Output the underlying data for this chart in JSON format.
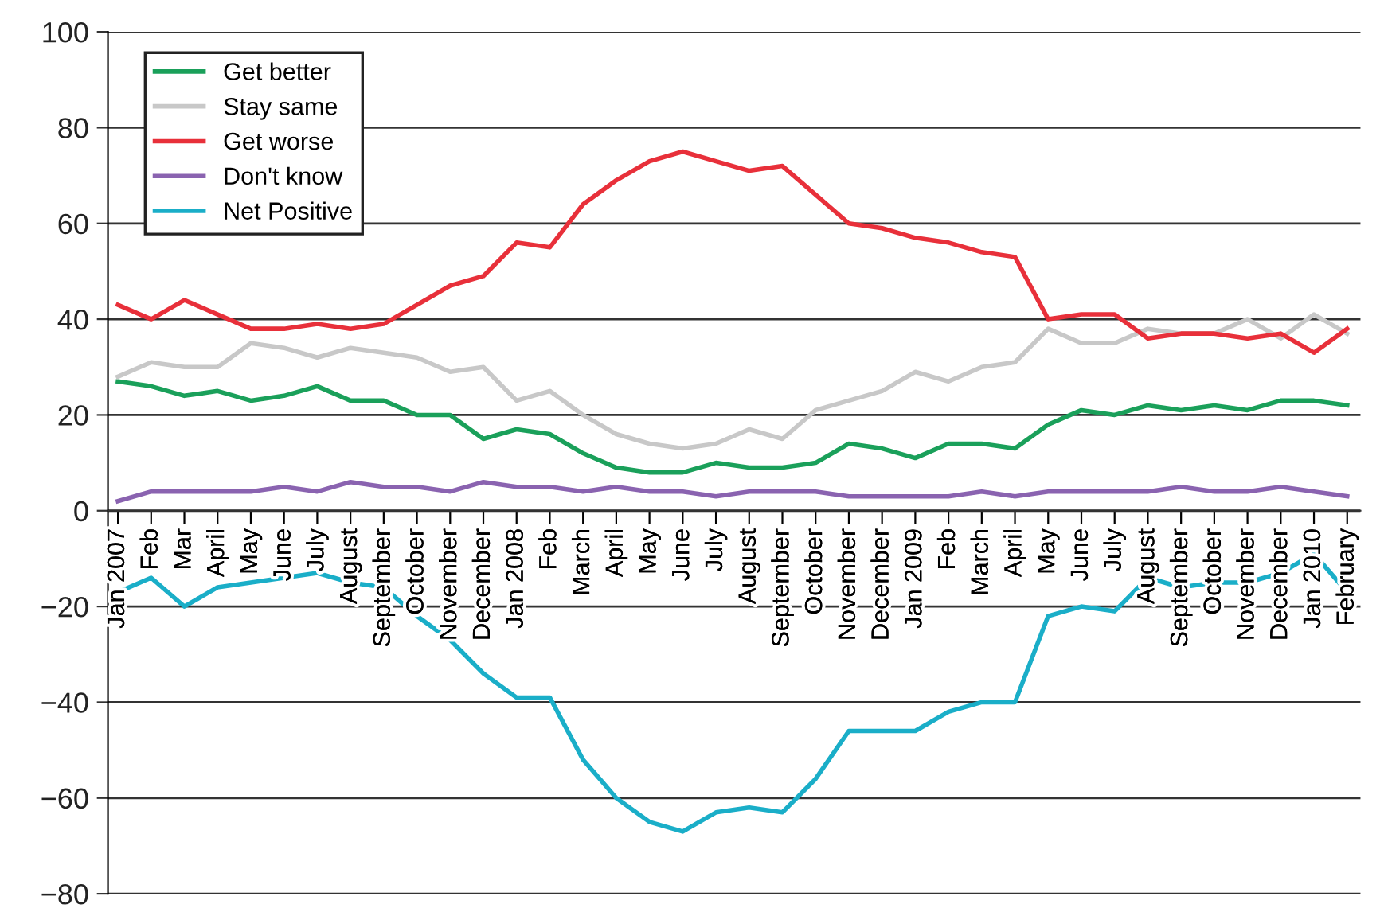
{
  "chart_data": {
    "type": "line",
    "categories": [
      "Jan 2007",
      "Feb",
      "Mar",
      "April",
      "May",
      "June",
      "July",
      "August",
      "September",
      "October",
      "November",
      "December",
      "Jan 2008",
      "Feb",
      "March",
      "April",
      "May",
      "June",
      "July",
      "August",
      "September",
      "October",
      "November",
      "December",
      "Jan 2009",
      "Feb",
      "March",
      "April",
      "May",
      "June",
      "July",
      "August",
      "September",
      "October",
      "November",
      "December",
      "Jan 2010",
      "February"
    ],
    "series": [
      {
        "name": "Get better",
        "color": "#1aa05a",
        "values": [
          27,
          26,
          24,
          25,
          23,
          24,
          26,
          23,
          23,
          20,
          20,
          15,
          17,
          16,
          12,
          9,
          8,
          8,
          10,
          9,
          9,
          10,
          14,
          13,
          11,
          14,
          14,
          13,
          18,
          21,
          20,
          22,
          21,
          22,
          21,
          23,
          23,
          22
        ]
      },
      {
        "name": "Stay same",
        "color": "#c8c8c8",
        "values": [
          28,
          31,
          30,
          30,
          35,
          34,
          32,
          34,
          33,
          32,
          29,
          30,
          23,
          25,
          20,
          16,
          14,
          13,
          14,
          17,
          15,
          21,
          23,
          25,
          29,
          27,
          30,
          31,
          38,
          35,
          35,
          38,
          37,
          37,
          40,
          36,
          41,
          37
        ]
      },
      {
        "name": "Get worse",
        "color": "#e8303a",
        "values": [
          43,
          40,
          44,
          41,
          38,
          38,
          39,
          38,
          39,
          43,
          47,
          49,
          56,
          55,
          64,
          69,
          73,
          75,
          73,
          71,
          72,
          66,
          60,
          59,
          57,
          56,
          54,
          53,
          40,
          41,
          41,
          36,
          37,
          37,
          36,
          37,
          33,
          38
        ]
      },
      {
        "name": "Don't know",
        "color": "#8a63b0",
        "values": [
          2,
          4,
          4,
          4,
          4,
          5,
          4,
          6,
          5,
          5,
          4,
          6,
          5,
          5,
          4,
          5,
          4,
          4,
          3,
          4,
          4,
          4,
          3,
          3,
          3,
          3,
          4,
          3,
          4,
          4,
          4,
          4,
          5,
          4,
          4,
          5,
          4,
          3
        ]
      },
      {
        "name": "Net Positive",
        "color": "#1aaec8",
        "values": [
          -17,
          -14,
          -20,
          -16,
          -15,
          -14,
          -13,
          -15,
          -16,
          -22,
          -27,
          -34,
          -39,
          -39,
          -52,
          -60,
          -65,
          -67,
          -63,
          -62,
          -63,
          -56,
          -46,
          -46,
          -46,
          -42,
          -40,
          -40,
          -22,
          -20,
          -21,
          -14,
          -16,
          -15,
          -15,
          -13,
          -9,
          -17
        ]
      }
    ],
    "ylim": [
      -80,
      100
    ],
    "yticks": [
      -80,
      -60,
      -40,
      -20,
      0,
      20,
      40,
      60,
      80,
      100
    ],
    "grid": "y",
    "legend": "top left",
    "marker": "none",
    "line_style": "solid"
  }
}
